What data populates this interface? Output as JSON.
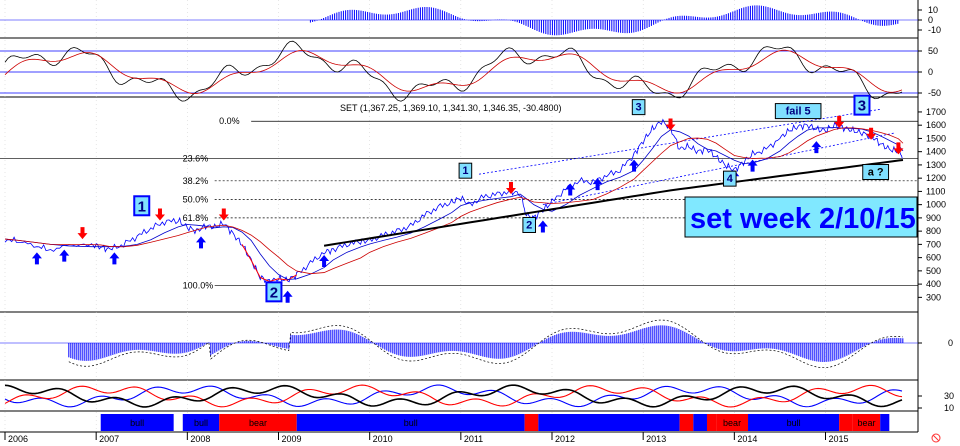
{
  "chart_data": {
    "type": "line",
    "title": "SET (1,367.25, 1,369.10, 1,341.30, 1,346.35, -30.4800)",
    "headline": "set week 2/10/15",
    "x_axis": {
      "labels": [
        "2006",
        "2007",
        "2008",
        "2009",
        "2010",
        "2011",
        "2012",
        "2013",
        "2014",
        "2015"
      ],
      "range": [
        2006.0,
        2015.85
      ]
    },
    "main_panel": {
      "y_ticks": [
        1700,
        1600,
        1500,
        1400,
        1300,
        1200,
        1100,
        1000,
        900,
        800,
        700,
        600,
        500,
        400,
        300
      ],
      "ylim": [
        280,
        1760
      ],
      "price": [
        [
          2006.0,
          740
        ],
        [
          2006.15,
          720
        ],
        [
          2006.35,
          680
        ],
        [
          2006.5,
          660
        ],
        [
          2006.7,
          690
        ],
        [
          2006.95,
          700
        ],
        [
          2007.05,
          680
        ],
        [
          2007.15,
          660
        ],
        [
          2007.3,
          700
        ],
        [
          2007.45,
          760
        ],
        [
          2007.6,
          820
        ],
        [
          2007.75,
          870
        ],
        [
          2007.9,
          880
        ],
        [
          2008.0,
          830
        ],
        [
          2008.1,
          800
        ],
        [
          2008.2,
          840
        ],
        [
          2008.3,
          830
        ],
        [
          2008.4,
          860
        ],
        [
          2008.5,
          780
        ],
        [
          2008.6,
          700
        ],
        [
          2008.7,
          580
        ],
        [
          2008.8,
          450
        ],
        [
          2008.9,
          420
        ],
        [
          2009.0,
          440
        ],
        [
          2009.1,
          430
        ],
        [
          2009.2,
          470
        ],
        [
          2009.35,
          560
        ],
        [
          2009.5,
          640
        ],
        [
          2009.6,
          660
        ],
        [
          2009.75,
          700
        ],
        [
          2009.9,
          720
        ],
        [
          2010.0,
          730
        ],
        [
          2010.15,
          770
        ],
        [
          2010.3,
          800
        ],
        [
          2010.45,
          840
        ],
        [
          2010.6,
          920
        ],
        [
          2010.75,
          980
        ],
        [
          2010.9,
          1020
        ],
        [
          2011.0,
          1050
        ],
        [
          2011.1,
          1000
        ],
        [
          2011.25,
          1060
        ],
        [
          2011.4,
          1080
        ],
        [
          2011.55,
          1100
        ],
        [
          2011.65,
          1080
        ],
        [
          2011.72,
          920
        ],
        [
          2011.8,
          900
        ],
        [
          2011.9,
          960
        ],
        [
          2012.0,
          1020
        ],
        [
          2012.15,
          1120
        ],
        [
          2012.3,
          1180
        ],
        [
          2012.45,
          1170
        ],
        [
          2012.6,
          1220
        ],
        [
          2012.75,
          1260
        ],
        [
          2012.9,
          1380
        ],
        [
          2013.0,
          1480
        ],
        [
          2013.1,
          1570
        ],
        [
          2013.2,
          1630
        ],
        [
          2013.3,
          1580
        ],
        [
          2013.4,
          1420
        ],
        [
          2013.5,
          1440
        ],
        [
          2013.6,
          1400
        ],
        [
          2013.7,
          1420
        ],
        [
          2013.8,
          1360
        ],
        [
          2013.9,
          1300
        ],
        [
          2014.0,
          1260
        ],
        [
          2014.1,
          1320
        ],
        [
          2014.2,
          1380
        ],
        [
          2014.35,
          1420
        ],
        [
          2014.5,
          1500
        ],
        [
          2014.6,
          1560
        ],
        [
          2014.7,
          1590
        ],
        [
          2014.8,
          1600
        ],
        [
          2014.9,
          1570
        ],
        [
          2015.0,
          1560
        ],
        [
          2015.1,
          1600
        ],
        [
          2015.2,
          1580
        ],
        [
          2015.3,
          1560
        ],
        [
          2015.4,
          1540
        ],
        [
          2015.5,
          1520
        ],
        [
          2015.6,
          1460
        ],
        [
          2015.7,
          1420
        ],
        [
          2015.8,
          1400
        ],
        [
          2015.85,
          1346
        ]
      ],
      "fibonacci": [
        {
          "label": "0.0%",
          "value": 1630
        },
        {
          "label": "23.6%",
          "value": 1350
        },
        {
          "label": "38.2%",
          "value": 1180
        },
        {
          "label": "50.0%",
          "value": 1040
        },
        {
          "label": "61.8%",
          "value": 900
        },
        {
          "label": "100.0%",
          "value": 390
        }
      ],
      "wave_labels": [
        {
          "text": "1",
          "x": 2007.5,
          "y": 950,
          "boxed": true
        },
        {
          "text": "2",
          "x": 2008.95,
          "y": 300,
          "boxed": true
        },
        {
          "text": "1",
          "x": 2011.05,
          "y": 1230,
          "boxed": true
        },
        {
          "text": "2",
          "x": 2011.75,
          "y": 820,
          "boxed": true
        },
        {
          "text": "3",
          "x": 2012.95,
          "y": 1710,
          "boxed": true
        },
        {
          "text": "4",
          "x": 2013.95,
          "y": 1170,
          "boxed": true
        },
        {
          "text": "fail 5",
          "x": 2014.7,
          "y": 1680,
          "boxed": true
        },
        {
          "text": "3",
          "x": 2015.4,
          "y": 1710,
          "boxed": true
        },
        {
          "text": "a ?",
          "x": 2015.55,
          "y": 1220,
          "boxed": true
        }
      ]
    },
    "panel1": {
      "y_ticks": [
        10,
        0,
        -10
      ]
    },
    "panel2": {
      "y_ticks": [
        50,
        0,
        -50
      ]
    },
    "panel3": {
      "y_ticks": [
        0
      ]
    },
    "panel4": {
      "y_ticks": [
        30,
        10
      ]
    },
    "regime_bar": [
      {
        "label": "bull",
        "from": 2007.05,
        "to": 2007.85,
        "color": "#0000ff"
      },
      {
        "label": "bull",
        "from": 2007.95,
        "to": 2008.35,
        "color": "#0000ff"
      },
      {
        "label": "bear",
        "from": 2008.35,
        "to": 2009.2,
        "color": "#ff0000"
      },
      {
        "label": "bull",
        "from": 2009.2,
        "to": 2011.7,
        "color": "#0000ff"
      },
      {
        "label": "",
        "from": 2011.7,
        "to": 2011.85,
        "color": "#ff0000"
      },
      {
        "label": "",
        "from": 2011.85,
        "to": 2013.4,
        "color": "#0000ff"
      },
      {
        "label": "",
        "from": 2013.4,
        "to": 2013.55,
        "color": "#ff0000"
      },
      {
        "label": "",
        "from": 2013.55,
        "to": 2013.7,
        "color": "#0000ff"
      },
      {
        "label": "",
        "from": 2013.7,
        "to": 2013.8,
        "color": "#ff0000"
      },
      {
        "label": "bear",
        "from": 2013.8,
        "to": 2014.15,
        "color": "#ff0000"
      },
      {
        "label": "bull",
        "from": 2014.15,
        "to": 2015.15,
        "color": "#0000ff"
      },
      {
        "label": "",
        "from": 2015.15,
        "to": 2015.3,
        "color": "#ff0000"
      },
      {
        "label": "bear",
        "from": 2015.3,
        "to": 2015.6,
        "color": "#ff0000"
      },
      {
        "label": "",
        "from": 2015.6,
        "to": 2015.7,
        "color": "#0000ff"
      }
    ],
    "colors": {
      "price": "#0000ff",
      "ma_long": "#000000",
      "ma_mid": "#cc0000",
      "ma_fast": "#0000cc",
      "histogram": "#0000ff",
      "up_arrow": "#0000ff",
      "down_arrow": "#ff0000",
      "box_fill": "#80e0ff",
      "headline_bg": "#80e8ff"
    }
  }
}
